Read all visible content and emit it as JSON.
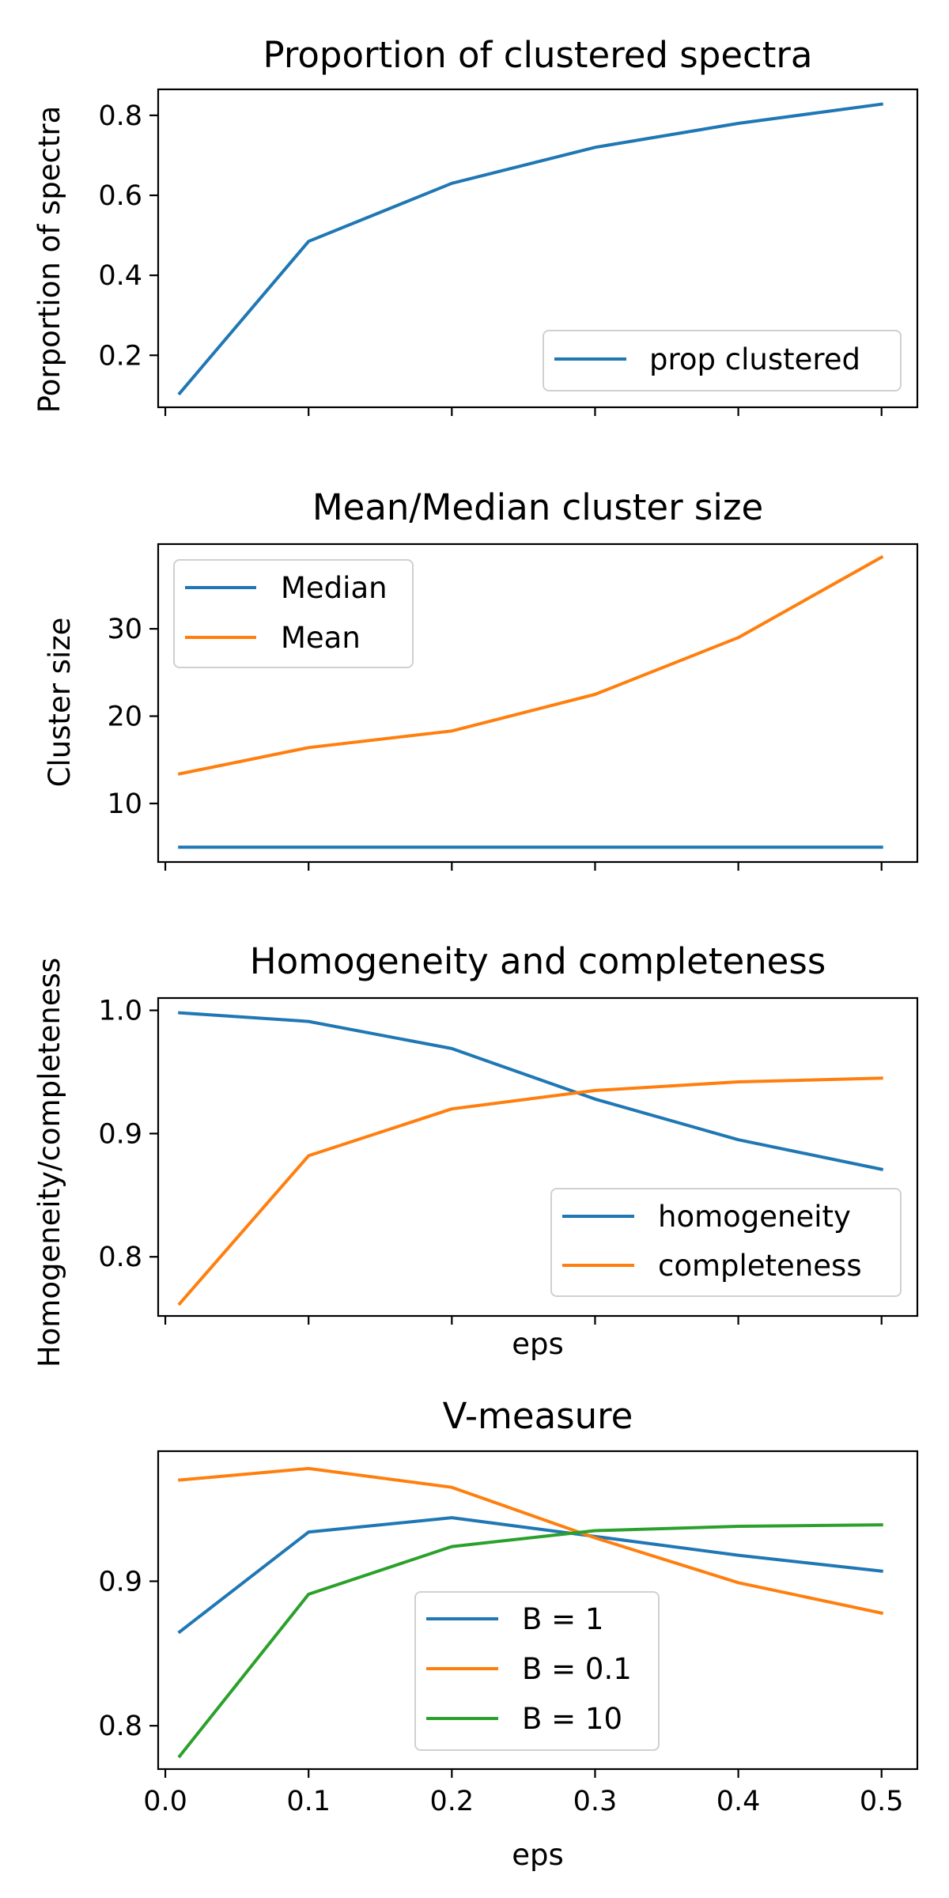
{
  "colors": {
    "blue": "#1f77b4",
    "orange": "#ff7f0e",
    "green": "#2ca02c"
  },
  "chart_data": [
    {
      "type": "line",
      "title": "Proportion of clustered spectra",
      "xlabel": "",
      "ylabel": "Porportion of spectra",
      "x": [
        0.01,
        0.1,
        0.2,
        0.3,
        0.4,
        0.5
      ],
      "xlim": [
        -0.005,
        0.525
      ],
      "ylim": [
        0.07,
        0.865
      ],
      "yticks": [
        0.2,
        0.4,
        0.6,
        0.8
      ],
      "ytick_labels": [
        "0.2",
        "0.4",
        "0.6",
        "0.8"
      ],
      "legend_position": "lower right",
      "series": [
        {
          "name": "prop clustered",
          "color": "#1f77b4",
          "values": [
            0.105,
            0.485,
            0.63,
            0.72,
            0.78,
            0.828
          ]
        }
      ]
    },
    {
      "type": "line",
      "title": "Mean/Median cluster size",
      "xlabel": "",
      "ylabel": "Cluster size",
      "x": [
        0.01,
        0.1,
        0.2,
        0.3,
        0.4,
        0.5
      ],
      "xlim": [
        -0.005,
        0.525
      ],
      "ylim": [
        3.3,
        39.7
      ],
      "yticks": [
        10,
        20,
        30
      ],
      "ytick_labels": [
        "10",
        "20",
        "30"
      ],
      "legend_position": "upper left",
      "series": [
        {
          "name": "Median",
          "color": "#1f77b4",
          "values": [
            5,
            5,
            5,
            5,
            5,
            5
          ]
        },
        {
          "name": "Mean",
          "color": "#ff7f0e",
          "values": [
            13.4,
            16.4,
            18.3,
            22.5,
            29.0,
            38.2
          ]
        }
      ]
    },
    {
      "type": "line",
      "title": "Homogeneity and completeness",
      "xlabel": "eps",
      "ylabel": "Homogeneity/completeness",
      "x": [
        0.01,
        0.1,
        0.2,
        0.3,
        0.4,
        0.5
      ],
      "xlim": [
        -0.005,
        0.525
      ],
      "ylim": [
        0.752,
        1.01
      ],
      "yticks": [
        0.8,
        0.9,
        1.0
      ],
      "ytick_labels": [
        "0.8",
        "0.9",
        "1.0"
      ],
      "legend_position": "lower right",
      "series": [
        {
          "name": "homogeneity",
          "color": "#1f77b4",
          "values": [
            0.998,
            0.991,
            0.969,
            0.928,
            0.895,
            0.871
          ]
        },
        {
          "name": "completeness",
          "color": "#ff7f0e",
          "values": [
            0.762,
            0.882,
            0.92,
            0.935,
            0.942,
            0.945
          ]
        }
      ]
    },
    {
      "type": "line",
      "title": "V-measure",
      "xlabel": "eps",
      "ylabel": "",
      "x": [
        0.01,
        0.1,
        0.2,
        0.3,
        0.4,
        0.5
      ],
      "xlim": [
        -0.005,
        0.525
      ],
      "xticks": [
        0.0,
        0.1,
        0.2,
        0.3,
        0.4,
        0.5
      ],
      "xtick_labels": [
        "0.0",
        "0.1",
        "0.2",
        "0.3",
        "0.4",
        "0.5"
      ],
      "ylim": [
        0.77,
        0.99
      ],
      "yticks": [
        0.8,
        0.9
      ],
      "ytick_labels": [
        "0.8",
        "0.9"
      ],
      "legend_position": "lower center",
      "series": [
        {
          "name": "B = 1",
          "color": "#1f77b4",
          "values": [
            0.865,
            0.934,
            0.944,
            0.931,
            0.918,
            0.907
          ]
        },
        {
          "name": "B = 0.1",
          "color": "#ff7f0e",
          "values": [
            0.97,
            0.978,
            0.965,
            0.93,
            0.899,
            0.878
          ]
        },
        {
          "name": "B = 10",
          "color": "#2ca02c",
          "values": [
            0.779,
            0.891,
            0.924,
            0.935,
            0.938,
            0.939
          ]
        }
      ]
    }
  ]
}
